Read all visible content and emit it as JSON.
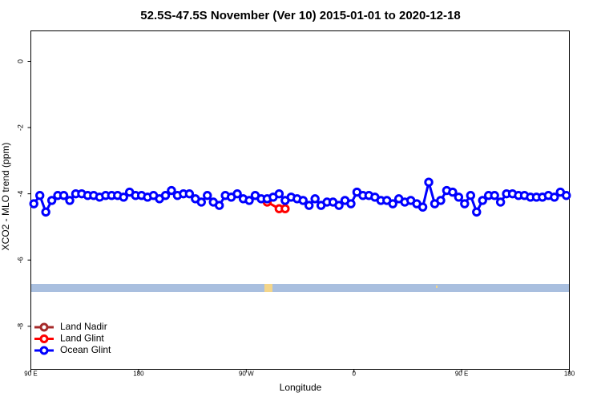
{
  "chart_data": {
    "type": "line",
    "title": "52.5S-47.5S November (Ver 10)   2015-01-01 to 2020-12-18",
    "x_label": "Longitude",
    "y_label": "XCO2 - MLO trend (ppm)",
    "xlim": [
      90,
      540
    ],
    "xticks": [
      {
        "value": 90,
        "label": "90 E"
      },
      180,
      {
        "value": 270,
        "label": "90 W"
      },
      {
        "value": 360,
        "label": "0"
      },
      {
        "value": 450,
        "label": "90 E"
      },
      {
        "value": 540,
        "label": "180"
      }
    ],
    "ylim": [
      -9.3,
      0.92
    ],
    "yticks": [
      0,
      -2,
      -4,
      -6,
      -8
    ],
    "legend": "lower left",
    "series": [
      {
        "name": "Land Nadir",
        "color": "#a52a2a",
        "x": [],
        "values": []
      },
      {
        "name": "Land Glint",
        "color": "#ff0000",
        "x": [
          287.5,
          297.5,
          302.5
        ],
        "values": [
          -4.25,
          -4.45,
          -4.45
        ]
      },
      {
        "name": "Ocean Glint",
        "color": "#0000ff",
        "x": [
          92.5,
          97.5,
          102.5,
          107.5,
          112.5,
          117.5,
          122.5,
          127.5,
          132.5,
          137.5,
          142.5,
          147.5,
          152.5,
          157.5,
          162.5,
          167.5,
          172.5,
          177.5,
          182.5,
          187.5,
          192.5,
          197.5,
          202.5,
          207.5,
          212.5,
          217.5,
          222.5,
          227.5,
          232.5,
          237.5,
          242.5,
          247.5,
          252.5,
          257.5,
          262.5,
          267.5,
          272.5,
          277.5,
          282.5,
          287.5,
          292.5,
          297.5,
          302.5,
          307.5,
          312.5,
          317.5,
          322.5,
          327.5,
          332.5,
          337.5,
          342.5,
          347.5,
          352.5,
          357.5,
          362.5,
          367.5,
          372.5,
          377.5,
          382.5,
          387.5,
          392.5,
          397.5,
          402.5,
          407.5,
          412.5,
          417.5,
          422.5,
          427.5,
          432.5,
          437.5,
          442.5,
          447.5,
          452.5,
          457.5,
          462.5,
          467.5,
          472.5,
          477.5,
          482.5,
          487.5,
          492.5,
          497.5,
          502.5,
          507.5,
          512.5,
          517.5,
          522.5,
          527.5,
          532.5,
          537.5
        ],
        "values": [
          -4.3,
          -4.05,
          -4.55,
          -4.2,
          -4.05,
          -4.05,
          -4.2,
          -4.0,
          -4.0,
          -4.05,
          -4.05,
          -4.1,
          -4.05,
          -4.05,
          -4.05,
          -4.1,
          -3.95,
          -4.05,
          -4.05,
          -4.1,
          -4.05,
          -4.15,
          -4.05,
          -3.9,
          -4.05,
          -4.0,
          -4.0,
          -4.15,
          -4.25,
          -4.05,
          -4.25,
          -4.35,
          -4.05,
          -4.1,
          -4.0,
          -4.15,
          -4.2,
          -4.05,
          -4.15,
          -4.15,
          -4.1,
          -4.0,
          -4.2,
          -4.1,
          -4.15,
          -4.2,
          -4.35,
          -4.15,
          -4.35,
          -4.25,
          -4.25,
          -4.35,
          -4.2,
          -4.3,
          -3.95,
          -4.05,
          -4.05,
          -4.1,
          -4.2,
          -4.2,
          -4.3,
          -4.15,
          -4.25,
          -4.2,
          -4.3,
          -4.4,
          -3.65,
          -4.3,
          -4.2,
          -3.9,
          -3.95,
          -4.1,
          -4.3,
          -4.05,
          -4.55,
          -4.2,
          -4.05,
          -4.05,
          -4.25,
          -4.0,
          -4.0,
          -4.05,
          -4.05,
          -4.1,
          -4.1,
          -4.1,
          -4.05,
          -4.1,
          -3.95,
          -4.05
        ]
      }
    ]
  }
}
